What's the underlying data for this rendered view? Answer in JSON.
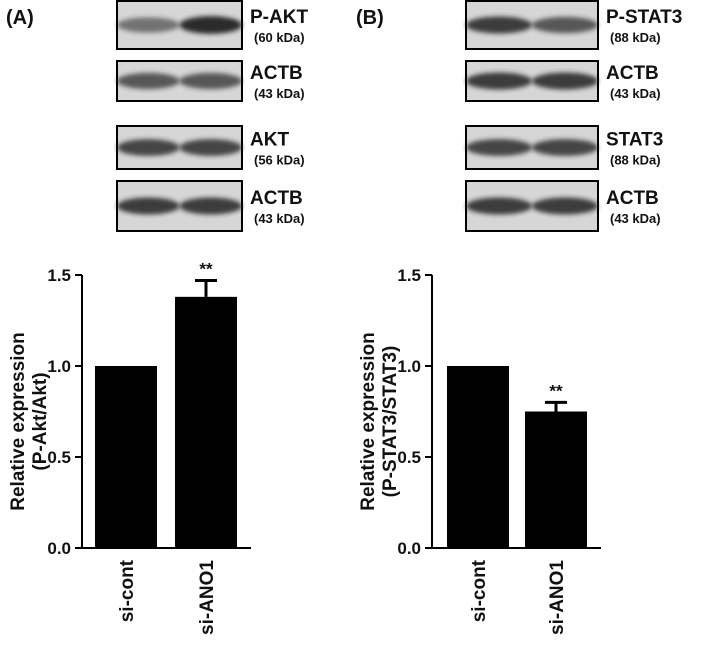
{
  "chart_data": [
    {
      "type": "bar",
      "panel_label": "(A)",
      "blots": [
        {
          "label": "P-AKT",
          "size": "(60 kDa)"
        },
        {
          "label": "ACTB",
          "size": "(43 kDa)"
        },
        {
          "label": "AKT",
          "size": "(56 kDa)"
        },
        {
          "label": "ACTB",
          "size": "(43 kDa)"
        }
      ],
      "ylabel": [
        "Relative expression",
        "(P-Akt/Akt)"
      ],
      "categories": [
        "si-cont",
        "si-ANO1"
      ],
      "values": [
        1.0,
        1.38
      ],
      "errors": [
        null,
        0.09
      ],
      "significance": [
        null,
        "**"
      ],
      "color": "#000000",
      "ylim": [
        0,
        1.5
      ],
      "yticks": [
        {
          "value": 0,
          "label": "0.0"
        },
        {
          "value": 0.5,
          "label": "0.5"
        },
        {
          "value": 1,
          "label": "1.0"
        },
        {
          "value": 1.5,
          "label": "1.5"
        }
      ]
    },
    {
      "type": "bar",
      "panel_label": "(B)",
      "blots": [
        {
          "label": "P-STAT3",
          "size": "(88 kDa)"
        },
        {
          "label": "ACTB",
          "size": "(43 kDa)"
        },
        {
          "label": "STAT3",
          "size": "(88 kDa)"
        },
        {
          "label": "ACTB",
          "size": "(43 kDa)"
        }
      ],
      "ylabel": [
        "Relative expression",
        "(P-STAT3/STAT3)"
      ],
      "categories": [
        "si-cont",
        "si-ANO1"
      ],
      "values": [
        1.0,
        0.75
      ],
      "errors": [
        null,
        0.05
      ],
      "significance": [
        null,
        "**"
      ],
      "color": "#000000",
      "ylim": [
        0,
        1.5
      ],
      "yticks": [
        {
          "value": 0,
          "label": "0.0"
        },
        {
          "value": 0.5,
          "label": "0.5"
        },
        {
          "value": 1,
          "label": "1.0"
        },
        {
          "value": 1.5,
          "label": "1.5"
        }
      ]
    }
  ]
}
